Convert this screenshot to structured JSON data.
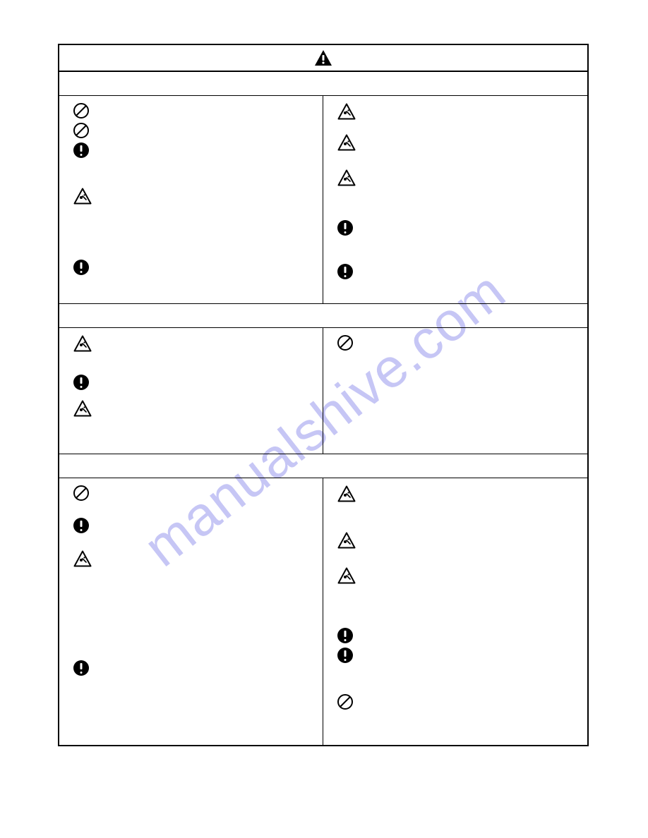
{
  "watermark_text": "manualshive.com",
  "colors": {
    "border": "#000000",
    "background": "#ffffff",
    "watermark": "rgba(120,120,230,0.42)"
  },
  "title": {
    "icon": "solid-warning-triangle"
  },
  "sections": [
    {
      "left_items": [
        {
          "icon": "prohibit",
          "body_height": 22
        },
        {
          "icon": "prohibit",
          "body_height": 22
        },
        {
          "icon": "mandatory",
          "body_height": 58
        },
        {
          "icon": "warn-tri",
          "body_height": 96
        },
        {
          "icon": "mandatory",
          "body_height": 44
        }
      ],
      "right_items": [
        {
          "icon": "warn-tri",
          "body_height": 38
        },
        {
          "icon": "warn-tri",
          "body_height": 44
        },
        {
          "icon": "warn-tri",
          "body_height": 66
        },
        {
          "icon": "mandatory",
          "body_height": 56
        },
        {
          "icon": "mandatory",
          "body_height": 40
        }
      ]
    },
    {
      "left_items": [
        {
          "icon": "warn-tri",
          "body_height": 50
        },
        {
          "icon": "mandatory",
          "body_height": 30
        },
        {
          "icon": "warn-tri",
          "body_height": 60
        }
      ],
      "right_items": [
        {
          "icon": "prohibit",
          "body_height": 140
        }
      ]
    },
    {
      "left_items": [
        {
          "icon": "prohibit",
          "body_height": 40
        },
        {
          "icon": "mandatory",
          "body_height": 40
        },
        {
          "icon": "warn-tri",
          "body_height": 150
        },
        {
          "icon": "mandatory",
          "body_height": 90
        }
      ],
      "right_items": [
        {
          "icon": "warn-tri",
          "body_height": 60
        },
        {
          "icon": "warn-tri",
          "body_height": 44
        },
        {
          "icon": "warn-tri",
          "body_height": 80
        },
        {
          "icon": "mandatory",
          "body_height": 22
        },
        {
          "icon": "mandatory",
          "body_height": 60
        },
        {
          "icon": "prohibit",
          "body_height": 56
        }
      ]
    }
  ]
}
